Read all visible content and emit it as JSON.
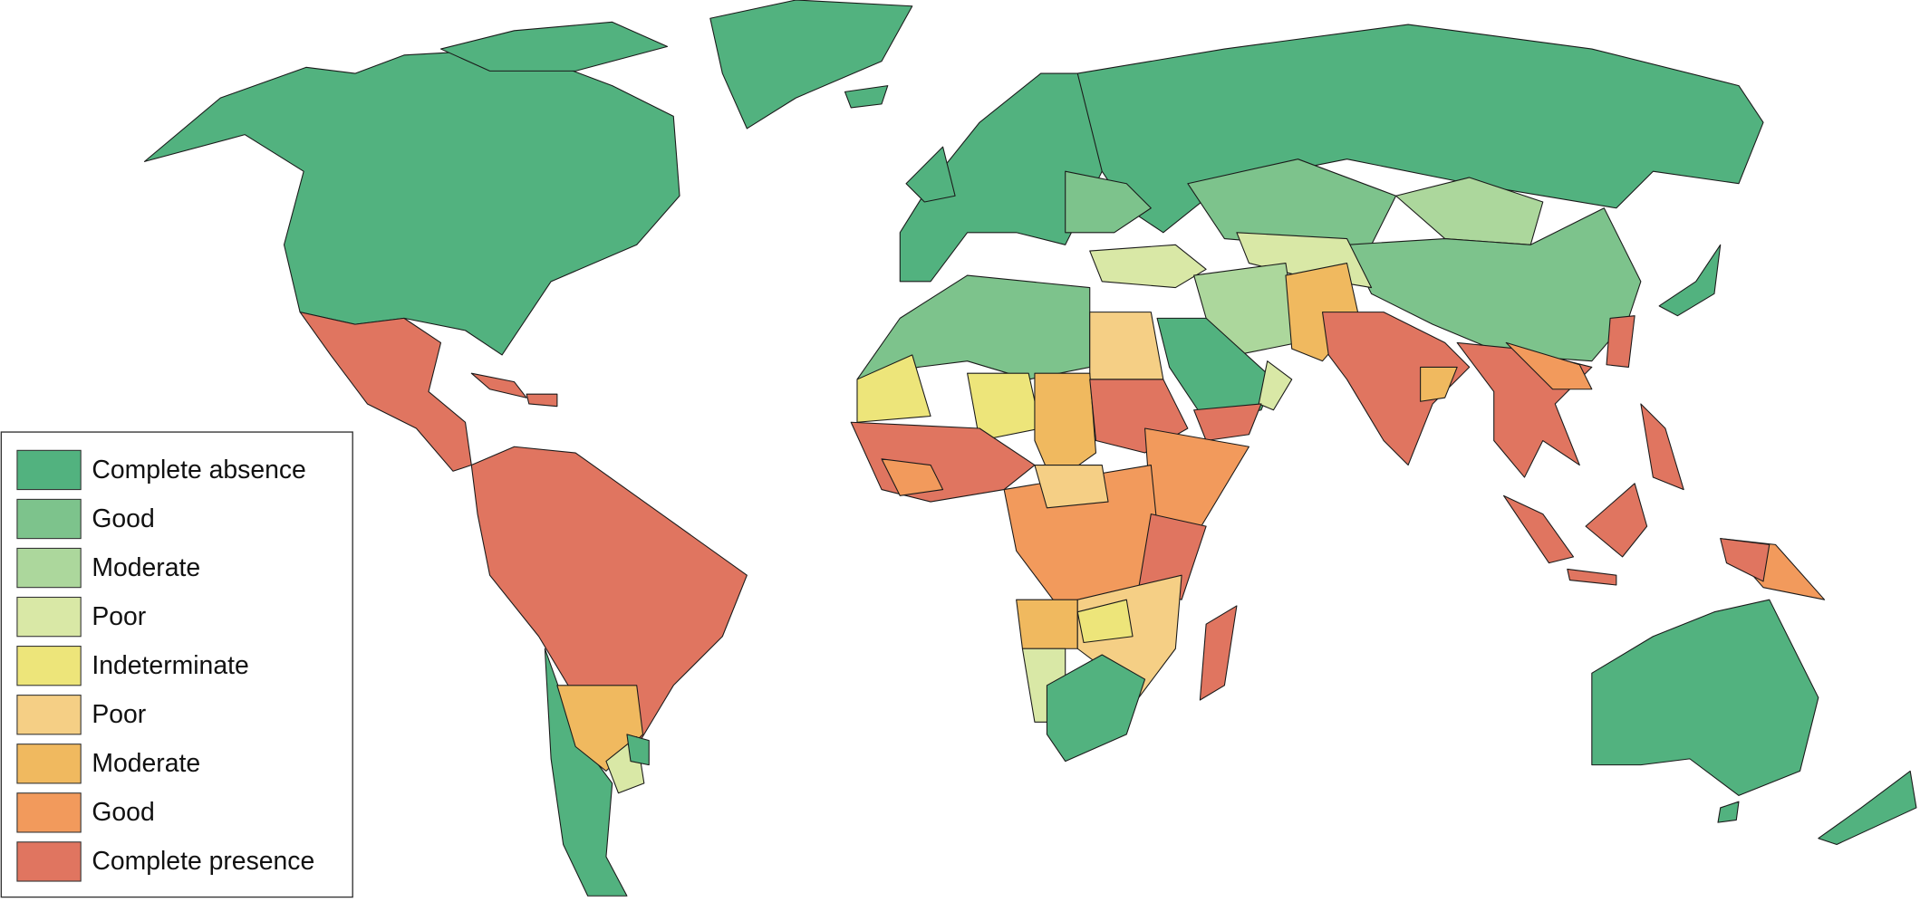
{
  "map": {
    "legend": [
      {
        "label": "Complete absence",
        "color": "#52b27f"
      },
      {
        "label": "Good",
        "color": "#7dc38c"
      },
      {
        "label": "Moderate",
        "color": "#acd79c"
      },
      {
        "label": "Poor",
        "color": "#d9e8a6"
      },
      {
        "label": "Indeterminate",
        "color": "#ede57a"
      },
      {
        "label": "Poor",
        "color": "#f5cf85"
      },
      {
        "label": "Moderate",
        "color": "#f0b95f"
      },
      {
        "label": "Good",
        "color": "#f29a5c"
      },
      {
        "label": "Complete presence",
        "color": "#e07560"
      }
    ]
  }
}
